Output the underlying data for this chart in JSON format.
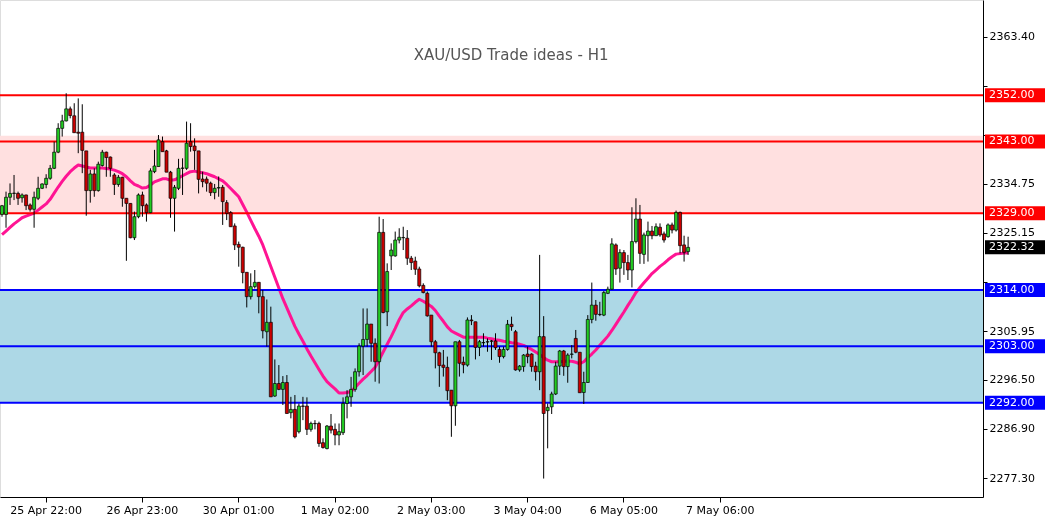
{
  "chart_data": {
    "type": "candlestick",
    "title": "XAU/USD Trade ideas - H1",
    "categories": [
      null,
      null,
      null,
      null,
      null,
      null,
      null,
      null,
      null,
      null,
      null,
      "25 Apr 22:00",
      null,
      null,
      null,
      null,
      null,
      null,
      null,
      null,
      null,
      null,
      null,
      null,
      null,
      null,
      null,
      null,
      null,
      null,
      null,
      null,
      null,
      null,
      null,
      "26 Apr 23:00",
      null,
      null,
      null,
      null,
      null,
      null,
      null,
      null,
      null,
      null,
      null,
      null,
      null,
      null,
      null,
      null,
      null,
      null,
      null,
      null,
      null,
      null,
      null,
      "30 Apr 01:00",
      null,
      null,
      null,
      null,
      null,
      null,
      null,
      null,
      null,
      null,
      null,
      null,
      null,
      null,
      null,
      null,
      null,
      null,
      null,
      null,
      null,
      null,
      null,
      "1 May 02:00",
      null,
      null,
      null,
      null,
      null,
      null,
      null,
      null,
      null,
      null,
      null,
      null,
      null,
      null,
      null,
      null,
      null,
      null,
      null,
      null,
      null,
      null,
      null,
      "2 May 03:00",
      null,
      null,
      null,
      null,
      null,
      null,
      null,
      null,
      null,
      null,
      null,
      null,
      null,
      null,
      null,
      null,
      null,
      null,
      null,
      null,
      null,
      null,
      null,
      "3 May 04:00",
      null,
      null,
      null,
      null,
      null,
      null,
      null,
      null,
      null,
      null,
      null,
      null,
      null,
      null,
      null,
      null,
      null,
      null,
      null,
      null,
      null,
      null,
      null,
      "6 May 05:00",
      null,
      null,
      null,
      null,
      null,
      null,
      null,
      null,
      null,
      null,
      null,
      null,
      null,
      null,
      null,
      null,
      null,
      null,
      null,
      null,
      null,
      null,
      null,
      "7 May 06:00",
      null,
      null,
      null,
      null,
      null,
      null,
      null,
      null,
      null,
      null,
      null,
      null,
      null,
      null,
      null,
      null,
      null,
      null,
      null,
      null,
      null,
      null,
      null,
      null,
      null,
      null,
      null,
      null,
      null,
      null,
      null,
      null,
      null,
      null,
      null,
      null,
      null,
      null,
      null,
      null,
      null,
      null,
      null,
      null,
      null,
      null,
      null,
      null,
      null,
      null,
      null,
      null,
      null,
      null,
      null,
      null,
      null,
      null,
      null,
      null,
      null,
      null,
      null,
      null,
      null
    ],
    "ohlc": [
      [
        2328.75,
        2330.6,
        2328.3,
        2330.45
      ],
      [
        2328.75,
        2333.2,
        2326.15,
        2332.1
      ],
      [
        2332.1,
        2334.8,
        2330.6,
        2332.85
      ],
      [
        2332.85,
        2336.45,
        2331.55,
        2332.9
      ],
      [
        2332.85,
        2333.2,
        2330.6,
        2331.9
      ],
      [
        2332.0,
        2332.85,
        2331.05,
        2332.55
      ],
      [
        2332.55,
        2332.6,
        2329.6,
        2330.45
      ],
      [
        2330.6,
        2330.9,
        2329.3,
        2329.75
      ],
      [
        2329.75,
        2333.2,
        2326.15,
        2332.1
      ],
      [
        2331.9,
        2336.1,
        2331.55,
        2333.85
      ],
      [
        2333.85,
        2334.8,
        2333.7,
        2334.7
      ],
      [
        2334.6,
        2336.6,
        2333.85,
        2335.8
      ],
      [
        2335.8,
        2338.4,
        2335.5,
        2337.75
      ],
      [
        2337.75,
        2342.95,
        2337.6,
        2340.9
      ],
      [
        2340.9,
        2346.55,
        2340.7,
        2345.55
      ],
      [
        2345.55,
        2348.2,
        2343.95,
        2347.0
      ],
      [
        2347.0,
        2352.4,
        2346.9,
        2349.35
      ],
      [
        2349.35,
        2349.8,
        2347.5,
        2348.05
      ],
      [
        2348.0,
        2350.45,
        2344.7,
        2344.7
      ],
      [
        2344.8,
        2351.4,
        2340.7,
        2344.6
      ],
      [
        2344.8,
        2350.25,
        2336.8,
        2341.25
      ],
      [
        2341.15,
        2341.15,
        2328.5,
        2333.4
      ],
      [
        2333.4,
        2337.45,
        2331.05,
        2336.65
      ],
      [
        2336.65,
        2337.75,
        2332.2,
        2333.4
      ],
      [
        2333.4,
        2339.05,
        2333.2,
        2338.55
      ],
      [
        2338.3,
        2341.35,
        2338.1,
        2340.9
      ],
      [
        2340.9,
        2341.0,
        2336.1,
        2339.85
      ],
      [
        2339.95,
        2340.05,
        2336.1,
        2337.75
      ],
      [
        2336.45,
        2336.8,
        2332.55,
        2334.6
      ],
      [
        2334.6,
        2336.45,
        2334.15,
        2336.0
      ],
      [
        2336.0,
        2336.1,
        2330.25,
        2331.9
      ],
      [
        2331.9,
        2331.9,
        2319.7,
        2330.9
      ],
      [
        2330.9,
        2330.9,
        2324.1,
        2324.2
      ],
      [
        2324.2,
        2329.3,
        2323.75,
        2328.3
      ],
      [
        2328.3,
        2332.85,
        2328.0,
        2332.55
      ],
      [
        2332.55,
        2333.2,
        2328.3,
        2330.45
      ],
      [
        2330.6,
        2330.9,
        2327.35,
        2329.1
      ],
      [
        2329.1,
        2337.75,
        2329.0,
        2337.25
      ],
      [
        2337.1,
        2341.35,
        2336.8,
        2338.2
      ],
      [
        2338.1,
        2344.25,
        2338.1,
        2343.3
      ],
      [
        2342.95,
        2343.95,
        2341.0,
        2341.0
      ],
      [
        2341.15,
        2341.35,
        2337.0,
        2337.0
      ],
      [
        2337.0,
        2337.25,
        2328.1,
        2331.9
      ],
      [
        2331.9,
        2334.5,
        2325.4,
        2334.05
      ],
      [
        2333.85,
        2339.6,
        2333.5,
        2337.75
      ],
      [
        2337.75,
        2339.7,
        2332.55,
        2337.8
      ],
      [
        2337.75,
        2346.87,
        2337.45,
        2342.65
      ],
      [
        2342.95,
        2346.55,
        2341.0,
        2342.0
      ],
      [
        2342.1,
        2343.6,
        2337.45,
        2341.2
      ],
      [
        2341.15,
        2341.15,
        2332.85,
        2335.6
      ],
      [
        2335.65,
        2337.1,
        2334.05,
        2335.15
      ],
      [
        2335.65,
        2336.15,
        2333.2,
        2334.85
      ],
      [
        2334.85,
        2335.15,
        2332.35,
        2333.0
      ],
      [
        2333.0,
        2334.7,
        2331.7,
        2333.85
      ],
      [
        2333.9,
        2336.15,
        2332.2,
        2334.0
      ],
      [
        2334.05,
        2334.5,
        2326.7,
        2331.25
      ],
      [
        2331.05,
        2331.55,
        2327.65,
        2328.95
      ],
      [
        2329.1,
        2329.4,
        2326.35,
        2326.35
      ],
      [
        2326.5,
        2327.0,
        2321.8,
        2322.8
      ],
      [
        2322.9,
        2323.45,
        2318.55,
        2322.35
      ],
      [
        2322.35,
        2322.45,
        2315.3,
        2317.4
      ],
      [
        2317.45,
        2317.45,
        2310.6,
        2312.7
      ],
      [
        2312.7,
        2317.25,
        2312.15,
        2314.65
      ],
      [
        2314.65,
        2317.9,
        2314.3,
        2315.5
      ],
      [
        2315.5,
        2315.5,
        2309.45,
        2312.7
      ],
      [
        2312.7,
        2314.0,
        2304.55,
        2306.05
      ],
      [
        2305.85,
        2312.15,
        2302.95,
        2307.7
      ],
      [
        2307.7,
        2310.75,
        2293.15,
        2293.15
      ],
      [
        2293.3,
        2300.45,
        2293.15,
        2295.75
      ],
      [
        2295.75,
        2299.35,
        2294.45,
        2294.6
      ],
      [
        2294.6,
        2297.2,
        2291.55,
        2295.95
      ],
      [
        2295.95,
        2297.4,
        2289.9,
        2289.9
      ],
      [
        2290.05,
        2293.15,
        2288.95,
        2290.7
      ],
      [
        2290.7,
        2293.5,
        2285.05,
        2285.35
      ],
      [
        2286.35,
        2291.85,
        2286.0,
        2291.35
      ],
      [
        2291.35,
        2293.15,
        2288.6,
        2291.3
      ],
      [
        2291.35,
        2293.05,
        2285.7,
        2286.8
      ],
      [
        2286.8,
        2288.3,
        2286.35,
        2287.95
      ],
      [
        2287.95,
        2288.6,
        2286.8,
        2287.9
      ],
      [
        2287.95,
        2288.3,
        2283.4,
        2284.05
      ],
      [
        2284.2,
        2285.05,
        2283.05,
        2283.25
      ],
      [
        2283.05,
        2287.65,
        2282.9,
        2287.45
      ],
      [
        2287.45,
        2289.8,
        2286.0,
        2286.65
      ],
      [
        2286.8,
        2287.95,
        2283.7,
        2285.7
      ],
      [
        2285.7,
        2287.95,
        2283.7,
        2286.35
      ],
      [
        2286.15,
        2293.05,
        2285.7,
        2291.85
      ],
      [
        2291.85,
        2294.45,
        2288.95,
        2293.15
      ],
      [
        2293.15,
        2297.05,
        2291.2,
        2294.6
      ],
      [
        2294.6,
        2298.7,
        2294.15,
        2298.05
      ],
      [
        2298.05,
        2303.6,
        2297.1,
        2303.05
      ],
      [
        2303.05,
        2310.4,
        2297.4,
        2304.35
      ],
      [
        2304.35,
        2310.4,
        2302.95,
        2307.35
      ],
      [
        2307.35,
        2307.35,
        2300.0,
        2303.6
      ],
      [
        2303.6,
        2304.55,
        2296.1,
        2300.0
      ],
      [
        2300.0,
        2328.3,
        2295.75,
        2325.25
      ],
      [
        2325.25,
        2327.85,
        2309.45,
        2309.6
      ],
      [
        2309.75,
        2319.2,
        2306.95,
        2317.6
      ],
      [
        2320.65,
        2323.1,
        2317.9,
        2321.8
      ],
      [
        2320.65,
        2325.4,
        2320.5,
        2323.75
      ],
      [
        2323.75,
        2326.05,
        2323.1,
        2324.3
      ],
      [
        2324.2,
        2326.35,
        2321.8,
        2324.25
      ],
      [
        2324.1,
        2325.7,
        2318.9,
        2320.2
      ],
      [
        2320.2,
        2320.65,
        2317.9,
        2319.35
      ],
      [
        2319.65,
        2320.5,
        2316.95,
        2318.05
      ],
      [
        2318.1,
        2318.55,
        2314.5,
        2314.8
      ],
      [
        2314.9,
        2315.3,
        2313.35,
        2313.5
      ],
      [
        2313.35,
        2313.7,
        2308.8,
        2308.95
      ],
      [
        2309.1,
        2309.1,
        2302.95,
        2303.9
      ],
      [
        2303.9,
        2304.25,
        2298.7,
        2301.75
      ],
      [
        2301.75,
        2301.95,
        2295.1,
        2299.25
      ],
      [
        2299.35,
        2302.3,
        2297.1,
        2298.9
      ],
      [
        2298.9,
        2301.0,
        2292.5,
        2294.35
      ],
      [
        2294.45,
        2294.45,
        2285.35,
        2291.4
      ],
      [
        2291.4,
        2303.9,
        2287.5,
        2303.9
      ],
      [
        2303.9,
        2304.25,
        2297.1,
        2299.7
      ],
      [
        2299.9,
        2301.0,
        2297.75,
        2299.4
      ],
      [
        2299.35,
        2308.65,
        2299.05,
        2308.15
      ],
      [
        2308.15,
        2309.1,
        2307.15,
        2308.0
      ],
      [
        2307.8,
        2307.8,
        2300.45,
        2302.8
      ],
      [
        2302.8,
        2304.25,
        2301.1,
        2303.9
      ],
      [
        2303.7,
        2305.55,
        2302.95,
        2303.75
      ],
      [
        2303.9,
        2304.55,
        2301.95,
        2303.85
      ],
      [
        2304.05,
        2304.25,
        2300.35,
        2304.0
      ],
      [
        2304.05,
        2305.55,
        2302.3,
        2302.75
      ],
      [
        2302.4,
        2302.95,
        2299.8,
        2301.0
      ],
      [
        2301.0,
        2302.95,
        2300.65,
        2302.4
      ],
      [
        2302.4,
        2308.15,
        2302.15,
        2307.3
      ],
      [
        2307.3,
        2308.8,
        2306.05,
        2306.85
      ],
      [
        2305.85,
        2306.2,
        2298.25,
        2298.4
      ],
      [
        2298.4,
        2299.35,
        2298.05,
        2299.15
      ],
      [
        2299.05,
        2301.5,
        2298.05,
        2301.3
      ],
      [
        2301.5,
        2302.95,
        2299.7,
        2301.0
      ],
      [
        2301.5,
        2301.65,
        2298.05,
        2299.05
      ],
      [
        2299.15,
        2300.0,
        2296.3,
        2298.05
      ],
      [
        2298.05,
        2320.85,
        2294.45,
        2304.9
      ],
      [
        2304.9,
        2308.9,
        2277.2,
        2289.9
      ],
      [
        2290.45,
        2291.85,
        2283.1,
        2291.1
      ],
      [
        2291.2,
        2294.15,
        2289.8,
        2293.7
      ],
      [
        2293.7,
        2300.0,
        2293.5,
        2299.15
      ],
      [
        2299.15,
        2302.3,
        2297.4,
        2302.1
      ],
      [
        2302.1,
        2302.3,
        2297.25,
        2299.05
      ],
      [
        2299.05,
        2301.65,
        2295.9,
        2301.3
      ],
      [
        2301.45,
        2303.25,
        2300.65,
        2301.5
      ],
      [
        2304.55,
        2306.2,
        2301.65,
        2301.85
      ],
      [
        2301.85,
        2301.85,
        2293.95,
        2293.95
      ],
      [
        2294.0,
        2298.05,
        2291.75,
        2295.95
      ],
      [
        2295.95,
        2309.1,
        2295.9,
        2308.25
      ],
      [
        2308.25,
        2315.45,
        2307.5,
        2311.05
      ],
      [
        2311.05,
        2312.05,
        2308.0,
        2309.25
      ],
      [
        2309.25,
        2311.7,
        2308.9,
        2309.2
      ],
      [
        2309.1,
        2313.8,
        2308.9,
        2313.5
      ],
      [
        2313.35,
        2314.65,
        2313.2,
        2314.15
      ],
      [
        2314.15,
        2324.1,
        2314.0,
        2323.0
      ],
      [
        2322.8,
        2323.1,
        2316.95,
        2318.1
      ],
      [
        2318.25,
        2321.95,
        2315.45,
        2321.3
      ],
      [
        2321.3,
        2321.8,
        2316.95,
        2319.35
      ],
      [
        2319.35,
        2320.85,
        2315.95,
        2317.9
      ],
      [
        2317.9,
        2330.15,
        2314.5,
        2323.45
      ],
      [
        2323.45,
        2331.9,
        2323.1,
        2327.85
      ],
      [
        2327.85,
        2330.6,
        2319.1,
        2321.15
      ],
      [
        2320.95,
        2325.2,
        2319.1,
        2324.75
      ],
      [
        2324.6,
        2327.35,
        2319.55,
        2325.5
      ],
      [
        2325.5,
        2326.5,
        2323.9,
        2324.6
      ],
      [
        2324.6,
        2327.0,
        2324.55,
        2326.35
      ],
      [
        2326.25,
        2327.0,
        2324.4,
        2324.75
      ],
      [
        2324.95,
        2325.4,
        2323.25,
        2323.75
      ],
      [
        2324.4,
        2327.0,
        2324.2,
        2326.7
      ],
      [
        2326.7,
        2327.15,
        2325.05,
        2325.7
      ],
      [
        2325.7,
        2329.5,
        2325.4,
        2329.15
      ],
      [
        2329.15,
        2329.3,
        2321.15,
        2322.65
      ],
      [
        2322.8,
        2324.6,
        2319.55,
        2321.35
      ],
      [
        2321.5,
        2324.4,
        2320.85,
        2322.32
      ],
      null,
      null,
      null,
      null,
      null,
      null,
      null,
      null,
      null,
      null,
      null,
      null,
      null,
      null,
      null,
      null,
      null,
      null,
      null,
      null,
      null,
      null,
      null,
      null,
      null,
      null,
      null,
      null,
      null,
      null,
      null,
      null,
      null,
      null,
      null,
      null,
      null,
      null,
      null,
      null,
      null,
      null,
      null,
      null,
      null,
      null,
      null,
      null,
      null,
      null,
      null,
      null,
      null,
      null,
      null,
      null,
      null,
      null,
      null,
      null,
      null,
      null,
      null,
      null,
      null,
      null,
      null,
      null,
      null,
      null,
      null,
      null,
      null
    ],
    "colors": [
      "#22cc22",
      "#22cc22",
      "#22cc22",
      "#22cc22",
      "#cc0000",
      "#22cc22",
      "#cc0000",
      "#cc0000",
      "#22cc22",
      "#22cc22",
      "#22cc22",
      "#22cc22",
      "#22cc22",
      "#22cc22",
      "#22cc22",
      "#22cc22",
      "#22cc22",
      "#cc0000",
      "#cc0000",
      "#cc0000",
      "#cc0000",
      "#cc0000",
      "#22cc22",
      "#cc0000",
      "#22cc22",
      "#22cc22",
      "#cc0000",
      "#cc0000",
      "#cc0000",
      "#22cc22",
      "#cc0000",
      "#cc0000",
      "#cc0000",
      "#22cc22",
      "#22cc22",
      "#cc0000",
      "#cc0000",
      "#22cc22",
      "#22cc22",
      "#22cc22",
      "#cc0000",
      "#cc0000",
      "#cc0000",
      "#22cc22",
      "#22cc22",
      "#22cc22",
      "#22cc22",
      "#cc0000",
      "#cc0000",
      "#cc0000",
      "#cc0000",
      "#cc0000",
      "#cc0000",
      "#22cc22",
      "#22cc22",
      "#cc0000",
      "#cc0000",
      "#cc0000",
      "#cc0000",
      "#cc0000",
      "#cc0000",
      "#cc0000",
      "#22cc22",
      "#22cc22",
      "#cc0000",
      "#cc0000",
      "#22cc22",
      "#cc0000",
      "#22cc22",
      "#cc0000",
      "#22cc22",
      "#cc0000",
      "#22cc22",
      "#cc0000",
      "#22cc22",
      "#cc0000",
      "#cc0000",
      "#22cc22",
      "#cc0000",
      "#cc0000",
      "#cc0000",
      "#22cc22",
      "#cc0000",
      "#cc0000",
      "#22cc22",
      "#22cc22",
      "#22cc22",
      "#22cc22",
      "#22cc22",
      "#22cc22",
      "#22cc22",
      "#22cc22",
      "#cc0000",
      "#cc0000",
      "#22cc22",
      "#cc0000",
      "#22cc22",
      "#22cc22",
      "#22cc22",
      "#22cc22",
      "#22cc22",
      "#cc0000",
      "#cc0000",
      "#cc0000",
      "#cc0000",
      "#cc0000",
      "#cc0000",
      "#cc0000",
      "#cc0000",
      "#cc0000",
      "#cc0000",
      "#cc0000",
      "#cc0000",
      "#22cc22",
      "#cc0000",
      "#cc0000",
      "#22cc22",
      "#cc0000",
      "#cc0000",
      "#22cc22",
      "#22cc22",
      "#cc0000",
      "#cc0000",
      "#cc0000",
      "#cc0000",
      "#22cc22",
      "#22cc22",
      "#cc0000",
      "#cc0000",
      "#22cc22",
      "#22cc22",
      "#cc0000",
      "#cc0000",
      "#cc0000",
      "#22cc22",
      "#cc0000",
      "#22cc22",
      "#22cc22",
      "#22cc22",
      "#22cc22",
      "#cc0000",
      "#22cc22",
      "#22cc22",
      "#cc0000",
      "#cc0000",
      "#22cc22",
      "#22cc22",
      "#22cc22",
      "#cc0000",
      "#cc0000",
      "#22cc22",
      "#22cc22",
      "#22cc22",
      "#cc0000",
      "#22cc22",
      "#cc0000",
      "#cc0000",
      "#22cc22",
      "#22cc22",
      "#cc0000",
      "#22cc22",
      "#22cc22",
      "#cc0000",
      "#22cc22",
      "#cc0000",
      "#cc0000",
      "#22cc22",
      "#cc0000",
      "#22cc22",
      "#cc0000",
      "#cc0000",
      "#22cc22",
      null,
      null,
      null,
      null,
      null,
      null,
      null,
      null,
      null,
      null,
      null,
      null,
      null,
      null,
      null,
      null,
      null,
      null,
      null,
      null,
      null,
      null,
      null,
      null,
      null,
      null,
      null,
      null,
      null,
      null,
      null,
      null,
      null,
      null,
      null,
      null,
      null,
      null,
      null,
      null,
      null,
      null,
      null,
      null,
      null,
      null,
      null,
      null,
      null,
      null,
      null,
      null,
      null,
      null,
      null,
      null,
      null,
      null,
      null,
      null,
      null,
      null,
      null,
      null,
      null,
      null,
      null,
      null,
      null,
      null,
      null,
      null,
      null
    ],
    "series": [
      {
        "type": "line",
        "color": "#ff1493",
        "line_style": "solid",
        "values": [
          2324.8,
          2325.5,
          2326.2,
          2326.9,
          2327.5,
          2328.1,
          2328.4,
          2328.7,
          2329.0,
          2329.6,
          2330.2,
          2330.8,
          2331.7,
          2332.9,
          2334.1,
          2335.2,
          2336.2,
          2337.1,
          2337.8,
          2338.4,
          2338.2,
          2338.0,
          2337.8,
          2337.8,
          2337.8,
          2337.8,
          2337.7,
          2337.6,
          2337.4,
          2337.1,
          2336.7,
          2336.1,
          2335.3,
          2334.6,
          2334.3,
          2333.9,
          2334.0,
          2334.5,
          2335.1,
          2335.4,
          2335.7,
          2335.7,
          2335.4,
          2335.5,
          2335.9,
          2336.3,
          2336.7,
          2337.1,
          2337.2,
          2337.0,
          2336.9,
          2336.7,
          2336.4,
          2336.1,
          2335.7,
          2335.3,
          2334.6,
          2333.8,
          2333.0,
          2332.2,
          2330.7,
          2329.2,
          2327.6,
          2326.0,
          2324.5,
          2322.8,
          2320.7,
          2318.6,
          2316.5,
          2314.4,
          2312.3,
          2310.5,
          2308.7,
          2306.9,
          2305.4,
          2304.0,
          2302.5,
          2301.1,
          2299.8,
          2298.5,
          2297.2,
          2296.1,
          2295.4,
          2294.7,
          2293.9,
          2293.9,
          2294.0,
          2294.2,
          2295.0,
          2295.8,
          2296.6,
          2297.3,
          2298.1,
          2298.9,
          2300.4,
          2301.9,
          2303.4,
          2304.9,
          2306.5,
          2308.2,
          2309.6,
          2310.3,
          2310.9,
          2311.6,
          2312.2,
          2311.8,
          2311.3,
          2310.8,
          2310.0,
          2308.9,
          2307.9,
          2306.8,
          2306.0,
          2305.6,
          2305.2,
          2304.8,
          2304.8,
          2304.8,
          2304.8,
          2304.8,
          2304.8,
          2304.6,
          2304.5,
          2304.3,
          2304.2,
          2304.0,
          2303.9,
          2303.7,
          2303.6,
          2303.4,
          2303.2,
          2302.8,
          2302.4,
          2301.9,
          2301.4,
          2300.8,
          2300.3,
          2300.0,
          2300.0,
          2300.0,
          2300.1,
          2300.1,
          2300.1,
          2299.9,
          2299.6,
          2300.0,
          2300.8,
          2301.5,
          2302.3,
          2303.2,
          2304.1,
          2305.0,
          2306.1,
          2307.3,
          2308.5,
          2309.7,
          2311.0,
          2312.2,
          2313.5,
          2314.5,
          2315.4,
          2316.3,
          2317.2,
          2317.9,
          2318.6,
          2319.2,
          2319.9,
          2320.5,
          2321.0,
          2321.1,
          2321.2,
          2321.2,
          null,
          null,
          null,
          null,
          null,
          null,
          null,
          null,
          null,
          null,
          null,
          null,
          null,
          null,
          null,
          null,
          null,
          null,
          null,
          null,
          null,
          null,
          null,
          null,
          null,
          null,
          null,
          null,
          null,
          null,
          null,
          null,
          null,
          null,
          null,
          null,
          null,
          null,
          null,
          null,
          null,
          null,
          null,
          null,
          null,
          null,
          null,
          null,
          null,
          null,
          null,
          null,
          null,
          null,
          null,
          null,
          null,
          null,
          null,
          null,
          null,
          null,
          null,
          null,
          null,
          null,
          null,
          null,
          null,
          null,
          null,
          null,
          null
        ]
      }
    ],
    "ylim": [
      2273.6,
      2370.6
    ],
    "yticks": [
      {
        "value": 2277.3,
        "label": "2277.30"
      },
      {
        "value": 2286.9,
        "label": "2286.90"
      },
      {
        "value": 2296.5,
        "label": "2296.50"
      },
      {
        "value": 2305.95,
        "label": "2305.95"
      },
      {
        "value": 2315.55,
        "label": null
      },
      {
        "value": 2325.15,
        "label": "2325.15"
      },
      {
        "value": 2334.75,
        "label": "2334.75"
      },
      {
        "value": 2344.25,
        "label": null
      },
      {
        "value": 2353.8,
        "label": null
      },
      {
        "value": 2363.4,
        "label": "2363.40"
      }
    ],
    "ref_lines": [
      {
        "axis": "y",
        "value": 2352,
        "label": "2352.00",
        "color": "#ff0000"
      },
      {
        "axis": "y",
        "value": 2343,
        "label": "2343.00",
        "color": "#ff0000"
      },
      {
        "axis": "y",
        "value": 2329,
        "label": "2329.00",
        "color": "#ff0000"
      },
      {
        "axis": "y",
        "value": 2314,
        "label": "2314.00",
        "color": "#0000ff"
      },
      {
        "axis": "y",
        "value": 2303,
        "label": "2303.00",
        "color": "#0000ff"
      },
      {
        "axis": "y",
        "value": 2292,
        "label": "2292.00",
        "color": "#0000ff"
      }
    ],
    "bands": [
      {
        "axis": "y",
        "from": 2329,
        "to": 2344.1,
        "color": "#ffe0e0"
      },
      {
        "axis": "y",
        "from": 2292,
        "to": 2314,
        "color": "#add8e6"
      }
    ],
    "annotations": [
      "2322.32"
    ]
  }
}
